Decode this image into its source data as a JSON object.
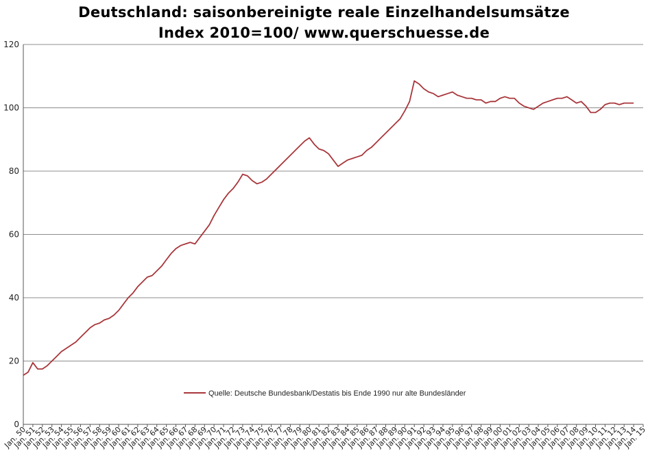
{
  "chart_data": {
    "type": "line",
    "title": "Deutschland: saisonbereinigte reale Einzelhandelsumsätze",
    "subtitle": "Index 2010=100/ www.querschuesse.de",
    "xlabel": "",
    "ylabel": "",
    "ylim": [
      0,
      120
    ],
    "yticks": [
      0,
      20,
      40,
      60,
      80,
      100,
      120
    ],
    "xlim": [
      1950,
      2015
    ],
    "x_tick_labels": [
      "Jan. 50",
      "Jan. 51",
      "Jan. 52",
      "Jan. 53",
      "Jan. 54",
      "Jan. 55",
      "Jan. 56",
      "Jan. 57",
      "Jan. 58",
      "Jan. 59",
      "Jan. 60",
      "Jan. 61",
      "Jan. 62",
      "Jan. 63",
      "Jan. 64",
      "Jan. 65",
      "Jan. 66",
      "Jan. 67",
      "Jan. 68",
      "Jan. 69",
      "Jan. 70",
      "Jan. 71",
      "Jan. 72",
      "Jan. 73",
      "Jan. 74",
      "Jan. 75",
      "Jan. 76",
      "Jan. 77",
      "Jan. 78",
      "Jan. 79",
      "Jan. 80",
      "Jan. 81",
      "Jan. 82",
      "Jan. 83",
      "Jan. 84",
      "Jan. 85",
      "Jan. 86",
      "Jan. 87",
      "Jan. 88",
      "Jan. 89",
      "Jan. 90",
      "Jan. 91",
      "Jan. 92",
      "Jan. 93",
      "Jan. 94",
      "Jan. 95",
      "Jan. 96",
      "Jan. 97",
      "Jan. 98",
      "Jan. 99",
      "Jan. 00",
      "Jan. 01",
      "Jan. 02",
      "Jan. 03",
      "Jan. 04",
      "Jan. 05",
      "Jan. 06",
      "Jan. 07",
      "Jan. 08",
      "Jan. 09",
      "Jan. 10",
      "Jan. 11",
      "Jan. 12",
      "Jan. 13",
      "Jan. 14",
      "Jan. 15"
    ],
    "grid": true,
    "legend_position": "center",
    "series": [
      {
        "name": "Quelle: Deutsche Bundesbank/Destatis bis Ende 1990 nur alte Bundesländer",
        "color": "#a8353a",
        "x": [
          1950.0,
          1950.5,
          1951.0,
          1951.5,
          1952.0,
          1952.5,
          1953.0,
          1953.5,
          1954.0,
          1954.5,
          1955.0,
          1955.5,
          1956.0,
          1956.5,
          1957.0,
          1957.5,
          1958.0,
          1958.5,
          1959.0,
          1959.5,
          1960.0,
          1960.5,
          1961.0,
          1961.5,
          1962.0,
          1962.5,
          1963.0,
          1963.5,
          1964.0,
          1964.5,
          1965.0,
          1965.5,
          1966.0,
          1966.5,
          1967.0,
          1967.5,
          1968.0,
          1968.5,
          1969.0,
          1969.5,
          1970.0,
          1970.5,
          1971.0,
          1971.5,
          1972.0,
          1972.5,
          1973.0,
          1973.5,
          1974.0,
          1974.5,
          1975.0,
          1975.5,
          1976.0,
          1976.5,
          1977.0,
          1977.5,
          1978.0,
          1978.5,
          1979.0,
          1979.5,
          1980.0,
          1980.5,
          1981.0,
          1981.5,
          1982.0,
          1982.5,
          1983.0,
          1983.5,
          1984.0,
          1984.5,
          1985.0,
          1985.5,
          1986.0,
          1986.5,
          1987.0,
          1987.5,
          1988.0,
          1988.5,
          1989.0,
          1989.5,
          1990.0,
          1990.5,
          1991.0,
          1991.5,
          1992.0,
          1992.5,
          1993.0,
          1993.5,
          1994.0,
          1994.5,
          1995.0,
          1995.5,
          1996.0,
          1996.5,
          1997.0,
          1997.5,
          1998.0,
          1998.5,
          1999.0,
          1999.5,
          2000.0,
          2000.5,
          2001.0,
          2001.5,
          2002.0,
          2002.5,
          2003.0,
          2003.5,
          2004.0,
          2004.5,
          2005.0,
          2005.5,
          2006.0,
          2006.5,
          2007.0,
          2007.5,
          2008.0,
          2008.5,
          2009.0,
          2009.5,
          2010.0,
          2010.5,
          2011.0,
          2011.5,
          2012.0,
          2012.5,
          2013.0,
          2013.5,
          2014.0
        ],
        "values": [
          15.5,
          16.5,
          19.5,
          17.5,
          17.5,
          18.5,
          20.0,
          21.5,
          23.0,
          24.0,
          25.0,
          26.0,
          27.5,
          29.0,
          30.5,
          31.5,
          32.0,
          33.0,
          33.5,
          34.5,
          36.0,
          38.0,
          40.0,
          41.5,
          43.5,
          45.0,
          46.5,
          47.0,
          48.5,
          50.0,
          52.0,
          54.0,
          55.5,
          56.5,
          57.0,
          57.5,
          57.0,
          59.0,
          61.0,
          63.0,
          66.0,
          68.5,
          71.0,
          73.0,
          74.5,
          76.5,
          79.0,
          78.5,
          77.0,
          76.0,
          76.5,
          77.5,
          79.0,
          80.5,
          82.0,
          83.5,
          85.0,
          86.5,
          88.0,
          89.5,
          90.5,
          88.5,
          87.0,
          86.5,
          85.5,
          83.5,
          81.5,
          82.5,
          83.5,
          84.0,
          84.5,
          85.0,
          86.5,
          87.5,
          89.0,
          90.5,
          92.0,
          93.5,
          95.0,
          96.5,
          99.0,
          102.0,
          108.5,
          107.5,
          106.0,
          105.0,
          104.5,
          103.5,
          104.0,
          104.5,
          105.0,
          104.0,
          103.5,
          103.0,
          103.0,
          102.5,
          102.5,
          101.5,
          102.0,
          102.0,
          103.0,
          103.5,
          103.0,
          103.0,
          101.5,
          100.5,
          100.0,
          99.5,
          100.5,
          101.5,
          102.0,
          102.5,
          103.0,
          103.0,
          103.5,
          102.5,
          101.5,
          102.0,
          100.5,
          98.5,
          98.5,
          99.5,
          101.0,
          101.5,
          101.5,
          101.0,
          101.5,
          101.5,
          101.5
        ]
      }
    ]
  }
}
